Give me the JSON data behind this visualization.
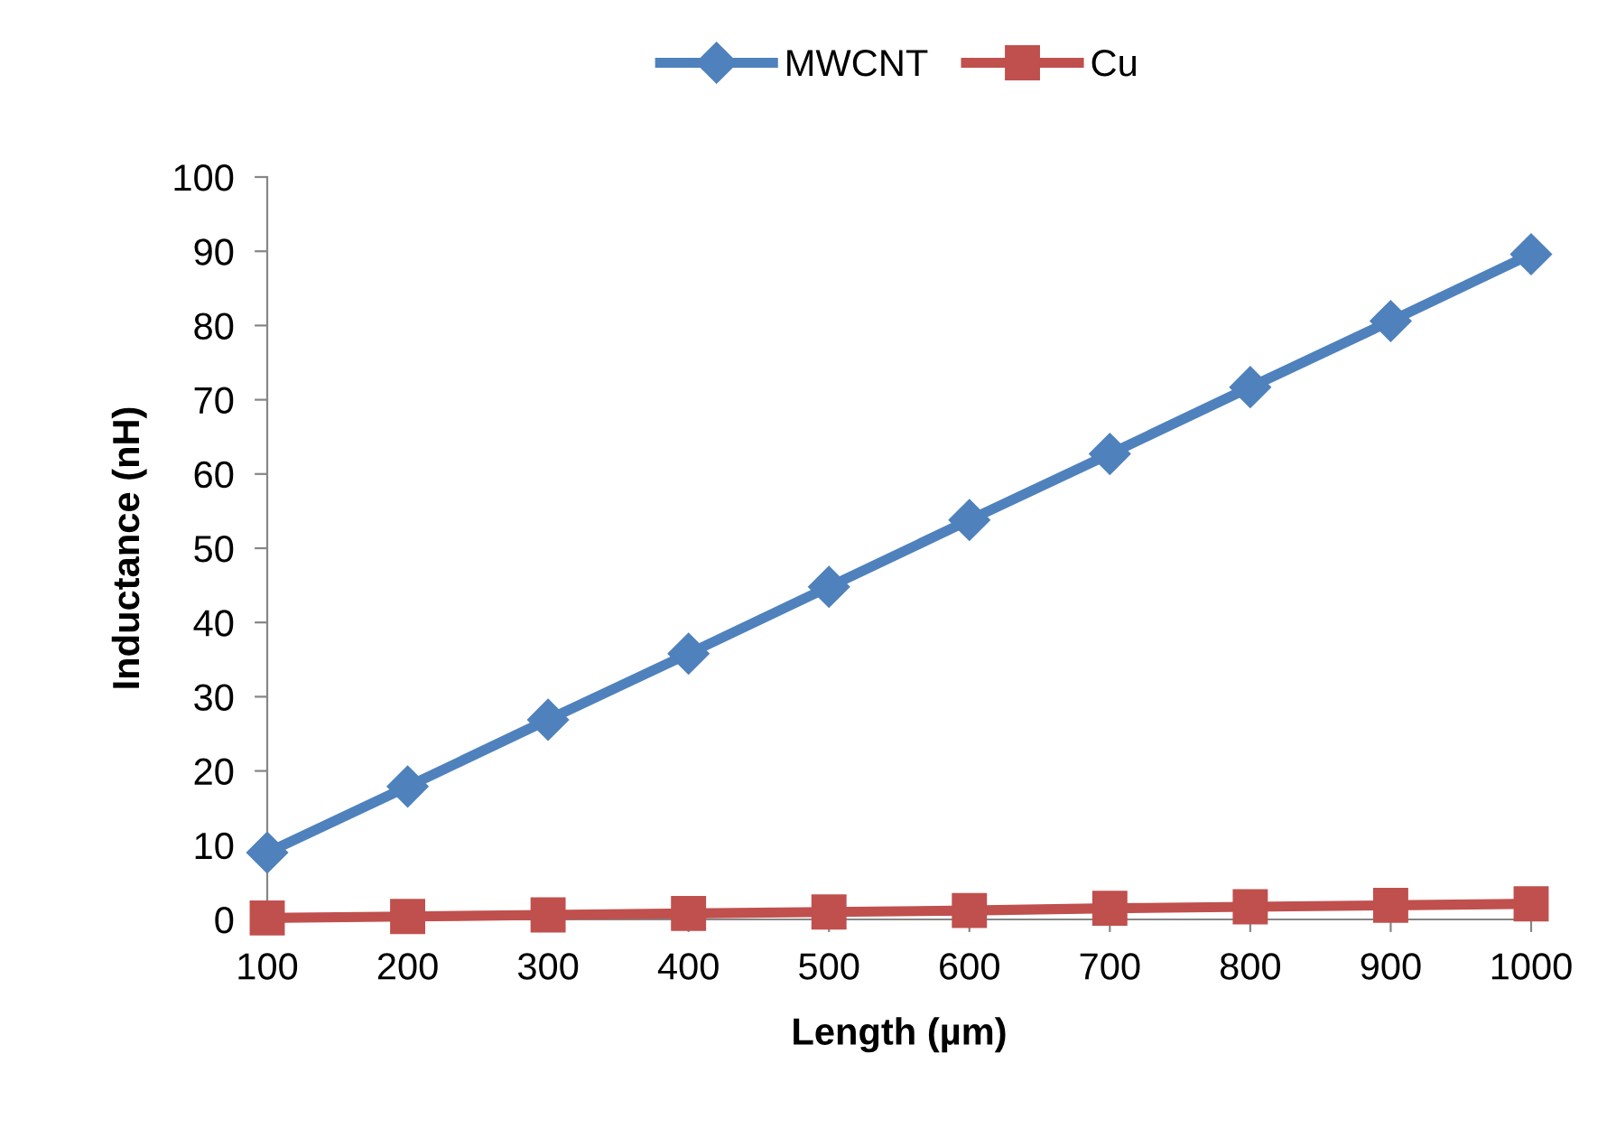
{
  "chart_data": {
    "type": "line",
    "xlabel": "Length (µm)",
    "ylabel": "Inductance (nH)",
    "categories": [
      "100",
      "200",
      "300",
      "400",
      "500",
      "600",
      "700",
      "800",
      "900",
      "1000"
    ],
    "series": [
      {
        "name": "MWCNT",
        "color": "#4f81bd",
        "marker": "diamond",
        "values": [
          9.0,
          17.9,
          26.9,
          35.8,
          44.8,
          53.8,
          62.7,
          71.7,
          80.6,
          89.6
        ]
      },
      {
        "name": "Cu",
        "color": "#c0504d",
        "marker": "square",
        "values": [
          0.2,
          0.4,
          0.6,
          0.8,
          1.0,
          1.2,
          1.5,
          1.7,
          1.9,
          2.1
        ]
      }
    ],
    "ylim": [
      0,
      100
    ],
    "yticks": [
      0,
      10,
      20,
      30,
      40,
      50,
      60,
      70,
      80,
      90,
      100
    ],
    "grid": false,
    "legend": "top",
    "line_style": "solid"
  }
}
